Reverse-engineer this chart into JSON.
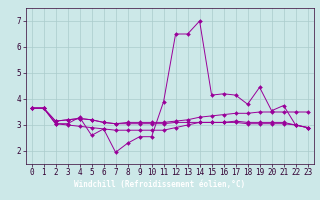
{
  "background_color": "#cce8e8",
  "plot_bg_color": "#cce8e8",
  "xlabel_bg_color": "#7f007f",
  "line_color": "#990099",
  "grid_color": "#aacccc",
  "xlabel": "Windchill (Refroidissement éolien,°C)",
  "xlim": [
    -0.5,
    23.5
  ],
  "ylim": [
    1.5,
    7.5
  ],
  "yticks": [
    2,
    3,
    4,
    5,
    6,
    7
  ],
  "xticks": [
    0,
    1,
    2,
    3,
    4,
    5,
    6,
    7,
    8,
    9,
    10,
    11,
    12,
    13,
    14,
    15,
    16,
    17,
    18,
    19,
    20,
    21,
    22,
    23
  ],
  "series": [
    [
      3.65,
      3.65,
      3.05,
      3.05,
      3.3,
      2.6,
      2.85,
      1.95,
      2.3,
      2.55,
      2.55,
      3.9,
      6.5,
      6.5,
      7.0,
      4.15,
      4.2,
      4.15,
      3.8,
      4.45,
      3.55,
      3.75,
      3.0,
      2.9
    ],
    [
      3.65,
      3.65,
      3.15,
      3.2,
      3.25,
      3.2,
      3.1,
      3.05,
      3.1,
      3.1,
      3.1,
      3.1,
      3.15,
      3.2,
      3.3,
      3.35,
      3.4,
      3.45,
      3.45,
      3.5,
      3.5,
      3.5,
      3.5,
      3.5
    ],
    [
      3.65,
      3.65,
      3.15,
      3.2,
      3.25,
      3.2,
      3.1,
      3.05,
      3.05,
      3.05,
      3.05,
      3.05,
      3.1,
      3.1,
      3.1,
      3.1,
      3.1,
      3.1,
      3.05,
      3.05,
      3.05,
      3.05,
      3.0,
      2.9
    ],
    [
      3.65,
      3.65,
      3.05,
      3.0,
      2.95,
      2.9,
      2.85,
      2.8,
      2.8,
      2.8,
      2.8,
      2.8,
      2.9,
      3.0,
      3.1,
      3.1,
      3.1,
      3.15,
      3.1,
      3.1,
      3.1,
      3.1,
      3.0,
      2.9
    ]
  ],
  "tick_fontsize": 5.5,
  "xlabel_fontsize": 5.5
}
